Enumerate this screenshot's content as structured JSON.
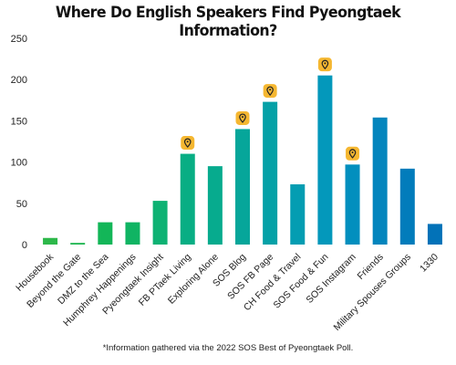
{
  "chart_data": {
    "type": "bar",
    "title": "Where Do English Speakers Find Pyeongtaek Information?",
    "xlabel": "",
    "ylabel": "",
    "ylim": [
      0,
      250
    ],
    "yticks": [
      0,
      50,
      100,
      150,
      200,
      250
    ],
    "grid": false,
    "legend": "none",
    "categories": [
      "Housebook",
      "Beyond the Gate",
      "DMZ to the Sea",
      "Humphrey Happenings",
      "Pyeongtaek Insight",
      "FB PTaek Living",
      "Exploring Alone",
      "SOS Blog",
      "SOS FB Page",
      "CH Food & Travel",
      "SOS Food & Fun",
      "SOS Instagram",
      "Friends",
      "Military Spouses Groups",
      "1330"
    ],
    "values": [
      8,
      2,
      27,
      27,
      53,
      110,
      95,
      140,
      173,
      73,
      205,
      97,
      154,
      92,
      25
    ],
    "bar_colors": [
      "#2db84a",
      "#1cb54f",
      "#13b658",
      "#10b463",
      "#0db273",
      "#08ae84",
      "#07ab8e",
      "#06a69a",
      "#05a1a7",
      "#049db2",
      "#0398bb",
      "#028fbe",
      "#0285bd",
      "#027cbb",
      "#0272b8"
    ],
    "marker_icon": "map-pin-icon",
    "marker_color": "#f5b731",
    "marked_categories": [
      "FB PTaek Living",
      "SOS Blog",
      "SOS FB Page",
      "SOS Food & Fun",
      "SOS Instagram"
    ]
  },
  "footnote": "*Information gathered via the 2022 SOS Best of Pyeongtaek Poll."
}
